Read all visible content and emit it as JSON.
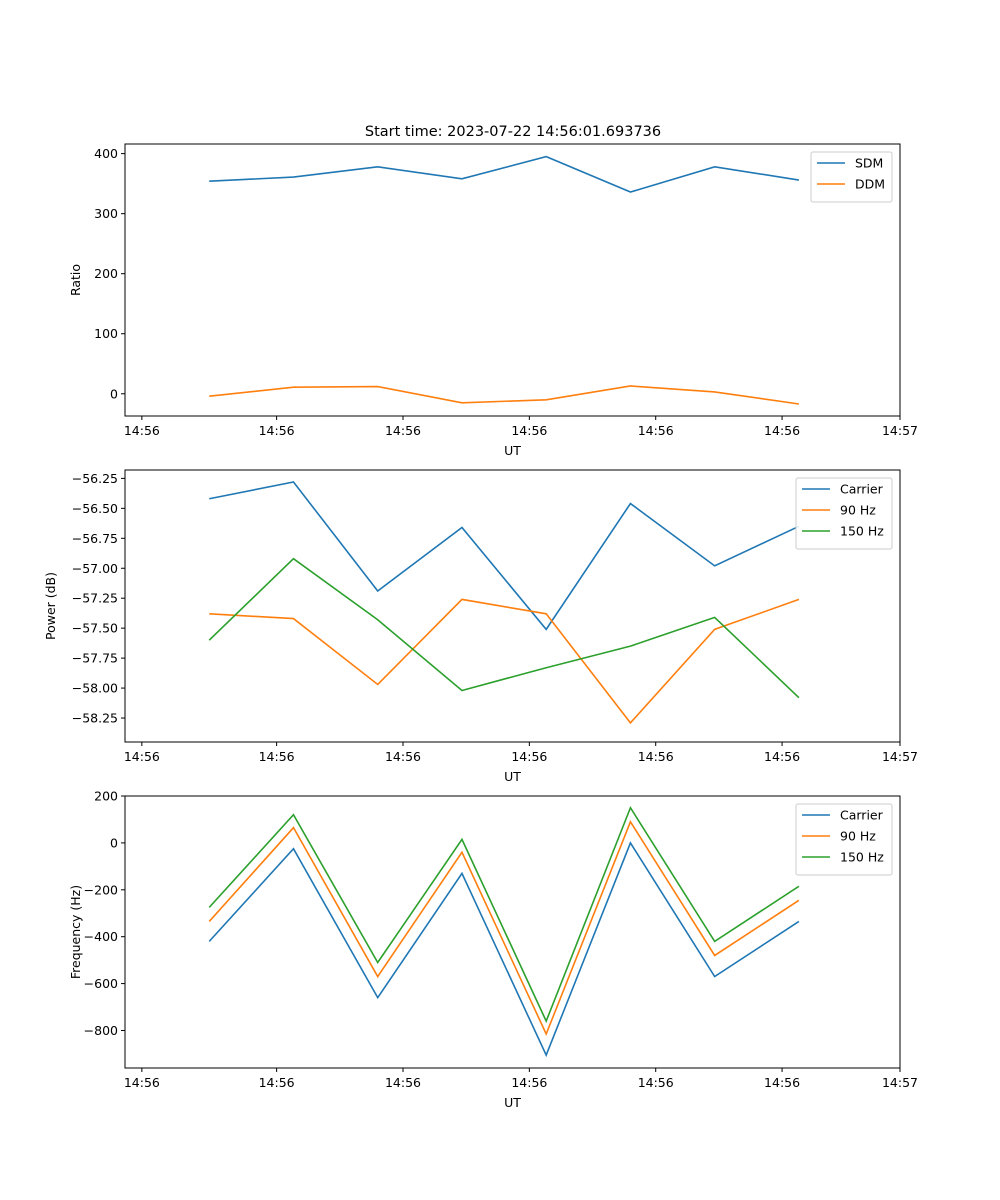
{
  "figure": {
    "title": "Start time: 2023-07-22 14:56:01.693736"
  },
  "chart_data": [
    {
      "type": "line",
      "title": "Start time: 2023-07-22 14:56:01.693736",
      "xlabel": "UT",
      "ylabel": "Ratio",
      "xlim": [
        0,
        9.2
      ],
      "ylim": [
        -37,
        416
      ],
      "x": [
        1,
        2,
        3,
        4,
        5,
        6,
        7,
        8
      ],
      "xticks": [
        0.2,
        1.8,
        3.3,
        4.8,
        6.3,
        7.8,
        9.2
      ],
      "xtick_labels": [
        "14:56",
        "14:56",
        "14:56",
        "14:56",
        "14:56",
        "14:56",
        "14:57"
      ],
      "yticks": [
        0,
        100,
        200,
        300,
        400
      ],
      "ytick_labels": [
        "0",
        "100",
        "200",
        "300",
        "400"
      ],
      "legend_position": "top-right",
      "series": [
        {
          "name": "SDM",
          "color": "#1f77b4",
          "values": [
            354,
            361,
            378,
            358,
            395,
            336,
            378,
            356
          ]
        },
        {
          "name": "DDM",
          "color": "#ff7f0e",
          "values": [
            -4,
            11,
            12,
            -15,
            -10,
            13,
            3,
            -17
          ]
        }
      ]
    },
    {
      "type": "line",
      "title": "",
      "xlabel": "UT",
      "ylabel": "Power (dB)",
      "xlim": [
        0,
        9.2
      ],
      "ylim": [
        -58.45,
        -56.18
      ],
      "x": [
        1,
        2,
        3,
        4,
        5,
        6,
        7,
        8
      ],
      "xticks": [
        0.2,
        1.8,
        3.3,
        4.8,
        6.3,
        7.8,
        9.2
      ],
      "xtick_labels": [
        "14:56",
        "14:56",
        "14:56",
        "14:56",
        "14:56",
        "14:56",
        "14:57"
      ],
      "yticks": [
        -56.25,
        -56.5,
        -56.75,
        -57.0,
        -57.25,
        -57.5,
        -57.75,
        -58.0,
        -58.25
      ],
      "ytick_labels": [
        "−56.25",
        "−56.50",
        "−56.75",
        "−57.00",
        "−57.25",
        "−57.50",
        "−57.75",
        "−58.00",
        "−58.25"
      ],
      "legend_position": "top-right",
      "series": [
        {
          "name": "Carrier",
          "color": "#1f77b4",
          "values": [
            -56.42,
            -56.28,
            -57.19,
            -56.66,
            -57.51,
            -56.46,
            -56.98,
            -56.65
          ]
        },
        {
          "name": "90 Hz",
          "color": "#ff7f0e",
          "values": [
            -57.38,
            -57.42,
            -57.97,
            -57.26,
            -57.38,
            -58.29,
            -57.51,
            -57.26
          ]
        },
        {
          "name": "150 Hz",
          "color": "#2ca02c",
          "values": [
            -57.6,
            -56.92,
            -57.43,
            -58.02,
            -57.83,
            -57.65,
            -57.41,
            -58.08
          ]
        }
      ]
    },
    {
      "type": "line",
      "title": "",
      "xlabel": "UT",
      "ylabel": "Frequency (Hz)",
      "xlim": [
        0,
        9.2
      ],
      "ylim": [
        -960,
        200
      ],
      "x": [
        1,
        2,
        3,
        4,
        5,
        6,
        7,
        8
      ],
      "xticks": [
        0.2,
        1.8,
        3.3,
        4.8,
        6.3,
        7.8,
        9.2
      ],
      "xtick_labels": [
        "14:56",
        "14:56",
        "14:56",
        "14:56",
        "14:56",
        "14:56",
        "14:57"
      ],
      "yticks": [
        200,
        0,
        -200,
        -400,
        -600,
        -800
      ],
      "ytick_labels": [
        "200",
        "0",
        "−200",
        "−400",
        "−600",
        "−800"
      ],
      "legend_position": "top-right",
      "series": [
        {
          "name": "Carrier",
          "color": "#1f77b4",
          "values": [
            -420,
            -25,
            -660,
            -130,
            -905,
            0,
            -570,
            -335
          ]
        },
        {
          "name": "90 Hz",
          "color": "#ff7f0e",
          "values": [
            -335,
            65,
            -570,
            -40,
            -815,
            90,
            -480,
            -245
          ]
        },
        {
          "name": "150 Hz",
          "color": "#2ca02c",
          "values": [
            -275,
            120,
            -510,
            15,
            -760,
            150,
            -420,
            -185
          ]
        }
      ]
    }
  ]
}
